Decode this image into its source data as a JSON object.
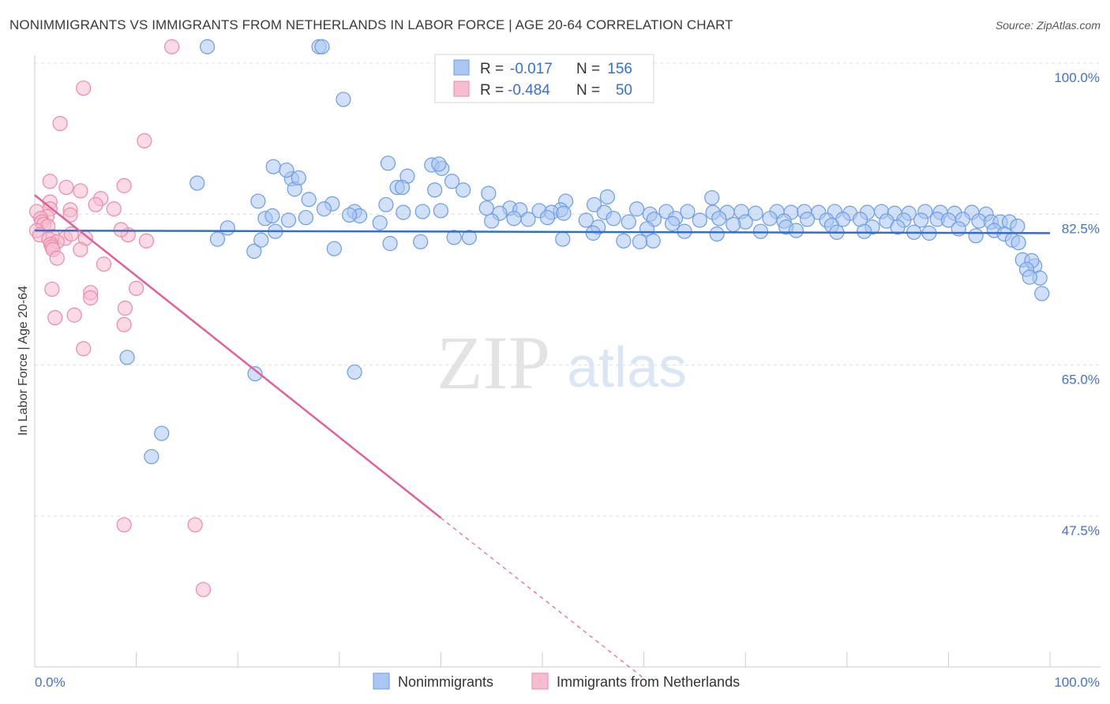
{
  "header": {
    "title": "NONIMMIGRANTS VS IMMIGRANTS FROM NETHERLANDS IN LABOR FORCE | AGE 20-64 CORRELATION CHART",
    "source": "Source: ZipAtlas.com"
  },
  "watermark": {
    "zip": "ZIP",
    "atlas": "atlas"
  },
  "colors": {
    "blue_fill": "#a9c7f2",
    "blue_stroke": "#6d9ce3",
    "blue_line": "#2f6fd0",
    "pink_fill": "#f7bcd0",
    "pink_stroke": "#e88aab",
    "pink_line": "#e0609a",
    "grid": "#dddddd",
    "tick_text": "#4472c4"
  },
  "chart_data": {
    "type": "scatter",
    "title": "NONIMMIGRANTS VS IMMIGRANTS FROM NETHERLANDS IN LABOR FORCE | AGE 20-64 CORRELATION CHART",
    "xlabel": "",
    "ylabel": "In Labor Force | Age 20-64",
    "xlim": [
      0,
      100
    ],
    "ylim": [
      31.5,
      103
    ],
    "x_tick_labels": [
      "0.0%",
      "100.0%"
    ],
    "y_ticks": [
      {
        "value": 100.0,
        "label": "100.0%"
      },
      {
        "value": 82.5,
        "label": "82.5%"
      },
      {
        "value": 65.0,
        "label": "65.0%"
      },
      {
        "value": 47.5,
        "label": "47.5%"
      }
    ],
    "legend": [
      {
        "name": "Nonimmigrants",
        "r_label": "R =",
        "r": "-0.017",
        "n_label": "N =",
        "n": "156"
      },
      {
        "name": "Immigrants from Netherlands",
        "r_label": "R =",
        "r": "-0.484",
        "n_label": "N =",
        "n": "50"
      }
    ],
    "series": [
      {
        "name": "Nonimmigrants",
        "trend": {
          "x0": 0,
          "y0": 80.6,
          "x1": 100,
          "y1": 80.3
        },
        "points": [
          [
            17,
            101.9
          ],
          [
            28,
            101.9
          ],
          [
            28.3,
            101.9
          ],
          [
            30.4,
            95.8
          ],
          [
            39.1,
            88.2
          ],
          [
            40.1,
            87.8
          ],
          [
            36.7,
            86.9
          ],
          [
            25.3,
            86.6
          ],
          [
            41.1,
            86.3
          ],
          [
            35.7,
            85.6
          ],
          [
            36.2,
            85.6
          ],
          [
            42.2,
            85.3
          ],
          [
            39.4,
            85.3
          ],
          [
            25.6,
            85.4
          ],
          [
            44.7,
            84.9
          ],
          [
            56.4,
            84.5
          ],
          [
            52.3,
            84.0
          ],
          [
            66.7,
            84.4
          ],
          [
            55.1,
            83.6
          ],
          [
            44.5,
            83.2
          ],
          [
            34.6,
            83.6
          ],
          [
            27.0,
            84.2
          ],
          [
            29.3,
            83.7
          ],
          [
            22.0,
            84.0
          ],
          [
            28.5,
            83.1
          ],
          [
            51.8,
            83.0
          ],
          [
            46.8,
            83.2
          ],
          [
            47.8,
            83.0
          ],
          [
            49.7,
            82.9
          ],
          [
            59.3,
            83.1
          ],
          [
            31.5,
            82.8
          ],
          [
            38.2,
            82.8
          ],
          [
            40.0,
            82.9
          ],
          [
            36.3,
            82.7
          ],
          [
            45.8,
            82.6
          ],
          [
            50.9,
            82.7
          ],
          [
            52.1,
            82.6
          ],
          [
            56.1,
            82.7
          ],
          [
            60.6,
            82.5
          ],
          [
            62.2,
            82.8
          ],
          [
            64.3,
            82.8
          ],
          [
            66.8,
            82.7
          ],
          [
            68.2,
            82.7
          ],
          [
            69.6,
            82.8
          ],
          [
            71.0,
            82.6
          ],
          [
            73.1,
            82.8
          ],
          [
            74.5,
            82.7
          ],
          [
            75.8,
            82.8
          ],
          [
            77.2,
            82.7
          ],
          [
            78.8,
            82.8
          ],
          [
            80.3,
            82.6
          ],
          [
            82.0,
            82.7
          ],
          [
            83.4,
            82.8
          ],
          [
            84.7,
            82.6
          ],
          [
            86.1,
            82.6
          ],
          [
            87.7,
            82.8
          ],
          [
            89.2,
            82.7
          ],
          [
            90.6,
            82.6
          ],
          [
            92.3,
            82.7
          ],
          [
            93.7,
            82.5
          ],
          [
            22.7,
            82.0
          ],
          [
            23.4,
            82.3
          ],
          [
            25.0,
            81.8
          ],
          [
            26.7,
            82.1
          ],
          [
            45.0,
            81.7
          ],
          [
            47.2,
            82.0
          ],
          [
            48.6,
            81.9
          ],
          [
            50.5,
            82.1
          ],
          [
            54.3,
            81.8
          ],
          [
            57.0,
            82.0
          ],
          [
            58.5,
            81.6
          ],
          [
            61.0,
            81.9
          ],
          [
            63.1,
            82.0
          ],
          [
            65.5,
            81.8
          ],
          [
            67.4,
            82.0
          ],
          [
            70.0,
            81.6
          ],
          [
            72.4,
            82.0
          ],
          [
            73.8,
            81.7
          ],
          [
            76.1,
            81.9
          ],
          [
            78.0,
            81.8
          ],
          [
            79.6,
            81.9
          ],
          [
            81.3,
            81.9
          ],
          [
            83.9,
            81.7
          ],
          [
            85.6,
            81.8
          ],
          [
            87.3,
            81.8
          ],
          [
            88.9,
            81.9
          ],
          [
            90.0,
            81.8
          ],
          [
            91.4,
            81.9
          ],
          [
            93.0,
            81.7
          ],
          [
            94.2,
            81.6
          ],
          [
            95.1,
            81.6
          ],
          [
            96.0,
            81.6
          ],
          [
            96.8,
            81.1
          ],
          [
            32.0,
            82.3
          ],
          [
            34.0,
            81.5
          ],
          [
            31.0,
            82.4
          ],
          [
            55.5,
            81.0
          ],
          [
            60.3,
            80.8
          ],
          [
            62.8,
            81.4
          ],
          [
            68.8,
            81.3
          ],
          [
            74.0,
            81.0
          ],
          [
            78.5,
            81.2
          ],
          [
            82.5,
            81.0
          ],
          [
            85.0,
            81.0
          ],
          [
            91.0,
            80.8
          ],
          [
            94.5,
            80.6
          ],
          [
            60.9,
            79.4
          ],
          [
            59.6,
            79.3
          ],
          [
            58.0,
            79.4
          ],
          [
            16.0,
            86.1
          ],
          [
            19.0,
            80.9
          ],
          [
            18.0,
            79.6
          ],
          [
            35.0,
            79.1
          ],
          [
            38.0,
            79.3
          ],
          [
            41.3,
            79.8
          ],
          [
            42.8,
            79.8
          ],
          [
            29.5,
            78.5
          ],
          [
            21.6,
            78.2
          ],
          [
            22.3,
            79.5
          ],
          [
            23.7,
            80.5
          ],
          [
            52.0,
            79.6
          ],
          [
            55.0,
            80.3
          ],
          [
            64.0,
            80.5
          ],
          [
            67.2,
            80.2
          ],
          [
            71.5,
            80.5
          ],
          [
            75.0,
            80.6
          ],
          [
            79.0,
            80.4
          ],
          [
            81.7,
            80.5
          ],
          [
            86.6,
            80.4
          ],
          [
            88.1,
            80.3
          ],
          [
            92.7,
            80.0
          ],
          [
            95.5,
            80.2
          ],
          [
            96.3,
            79.5
          ],
          [
            96.9,
            79.2
          ],
          [
            97.3,
            77.2
          ],
          [
            98.5,
            76.5
          ],
          [
            98.2,
            77.1
          ],
          [
            99.0,
            75.1
          ],
          [
            99.2,
            73.3
          ],
          [
            23.5,
            88.0
          ],
          [
            24.8,
            87.6
          ],
          [
            26.0,
            86.7
          ],
          [
            34.8,
            88.4
          ],
          [
            39.8,
            88.3
          ],
          [
            9.1,
            65.9
          ],
          [
            21.7,
            64.0
          ],
          [
            31.5,
            64.2
          ],
          [
            12.5,
            57.1
          ],
          [
            11.5,
            54.4
          ],
          [
            97.7,
            76.1
          ],
          [
            98.0,
            75.2
          ]
        ]
      },
      {
        "name": "Immigrants from Netherlands",
        "trend": {
          "x0": 0,
          "y0": 84.7,
          "x1": 40,
          "y1": 47.3,
          "dash_x1": 60,
          "dash_y1": 28.7
        },
        "points": [
          [
            13.5,
            101.9
          ],
          [
            4.8,
            97.1
          ],
          [
            2.5,
            93.0
          ],
          [
            10.8,
            91.0
          ],
          [
            1.5,
            86.3
          ],
          [
            8.8,
            85.8
          ],
          [
            3.1,
            85.6
          ],
          [
            4.5,
            85.2
          ],
          [
            6.5,
            84.3
          ],
          [
            1.5,
            83.9
          ],
          [
            6.0,
            83.6
          ],
          [
            1.5,
            83.1
          ],
          [
            7.8,
            83.1
          ],
          [
            3.5,
            83.0
          ],
          [
            0.2,
            82.8
          ],
          [
            3.5,
            82.4
          ],
          [
            1.2,
            82.2
          ],
          [
            0.6,
            82.0
          ],
          [
            0.7,
            81.6
          ],
          [
            0.9,
            81.3
          ],
          [
            1.3,
            81.1
          ],
          [
            0.2,
            80.6
          ],
          [
            0.5,
            80.1
          ],
          [
            1.8,
            79.9
          ],
          [
            1.4,
            79.6
          ],
          [
            3.0,
            79.7
          ],
          [
            2.2,
            79.3
          ],
          [
            1.6,
            79.0
          ],
          [
            1.7,
            78.7
          ],
          [
            5.0,
            79.7
          ],
          [
            3.6,
            80.2
          ],
          [
            9.2,
            80.1
          ],
          [
            8.5,
            80.7
          ],
          [
            11.0,
            79.4
          ],
          [
            4.5,
            78.4
          ],
          [
            1.8,
            78.4
          ],
          [
            2.2,
            77.4
          ],
          [
            6.8,
            76.7
          ],
          [
            10.0,
            73.9
          ],
          [
            1.7,
            73.8
          ],
          [
            5.5,
            73.4
          ],
          [
            5.5,
            72.8
          ],
          [
            8.9,
            71.6
          ],
          [
            3.9,
            70.8
          ],
          [
            2.0,
            70.5
          ],
          [
            8.8,
            69.7
          ],
          [
            4.8,
            66.9
          ],
          [
            8.8,
            46.5
          ],
          [
            15.8,
            46.5
          ],
          [
            16.6,
            39.0
          ]
        ]
      }
    ]
  }
}
